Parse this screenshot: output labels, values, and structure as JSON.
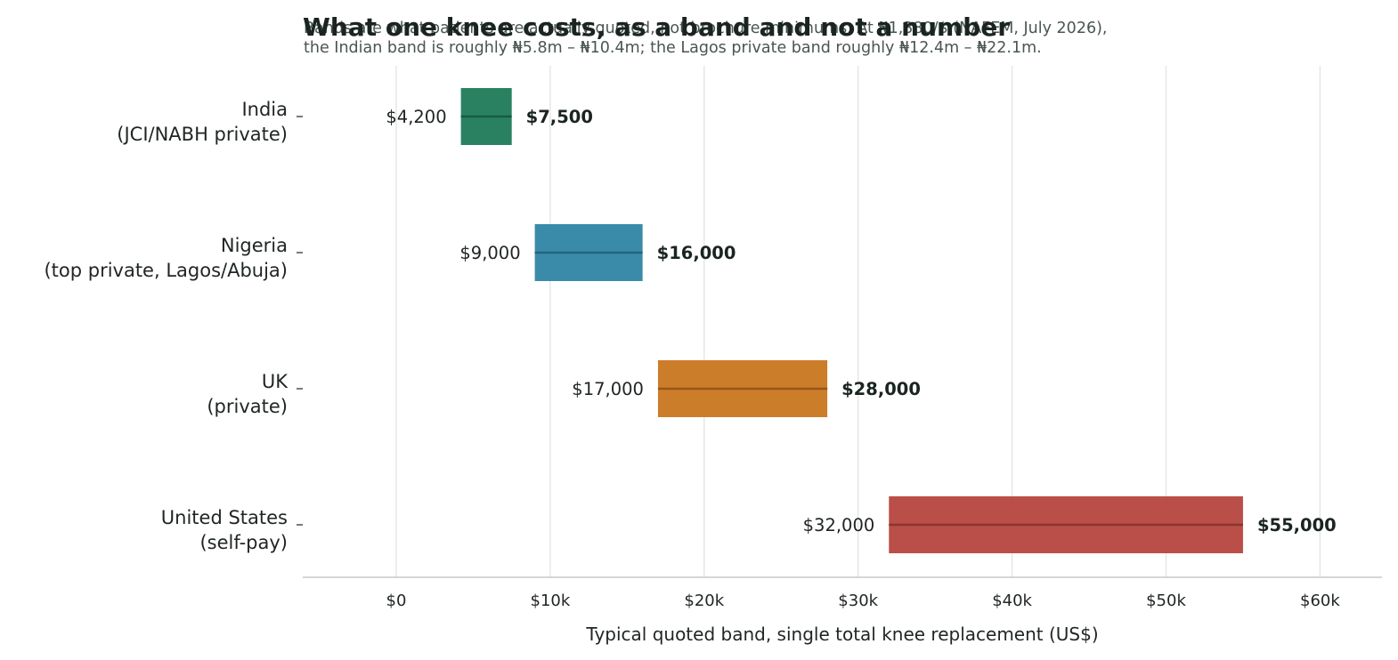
{
  "chart_data": {
    "type": "bar",
    "orientation": "horizontal",
    "title": "What one knee costs, as a band and not a number",
    "subtitle_lines": [
      "Bands are what patients are actually quoted, not brochure minimums. At ₦1,380/$ (NAFEM, July 2026),",
      "the Indian band is roughly ₦5.8m – ₦10.4m; the Lagos private band roughly ₦12.4m – ₦22.1m."
    ],
    "xlabel": "Typical quoted band, single total knee replacement (US$)",
    "ylabel": "",
    "xlim": [
      -6000,
      64000
    ],
    "xticks": [
      0,
      10000,
      20000,
      30000,
      40000,
      50000,
      60000
    ],
    "xtick_labels": [
      "$0",
      "$10k",
      "$20k",
      "$30k",
      "$40k",
      "$50k",
      "$60k"
    ],
    "grid": "vertical",
    "categories": [
      {
        "lines": [
          "India",
          "(JCI/NABH private)"
        ],
        "low": 4200,
        "high": 7500,
        "low_label": "$4,200",
        "high_label": "$7,500",
        "color": "#1f7a5a"
      },
      {
        "lines": [
          "Nigeria",
          "(top private, Lagos/Abuja)"
        ],
        "low": 9000,
        "high": 16000,
        "low_label": "$9,000",
        "high_label": "$16,000",
        "color": "#2f85a4"
      },
      {
        "lines": [
          "UK",
          "(private)"
        ],
        "low": 17000,
        "high": 28000,
        "low_label": "$17,000",
        "high_label": "$28,000",
        "color": "#c9761f"
      },
      {
        "lines": [
          "United States",
          "(self-pay)"
        ],
        "low": 32000,
        "high": 55000,
        "low_label": "$32,000",
        "high_label": "$55,000",
        "color": "#b5463e"
      }
    ]
  }
}
